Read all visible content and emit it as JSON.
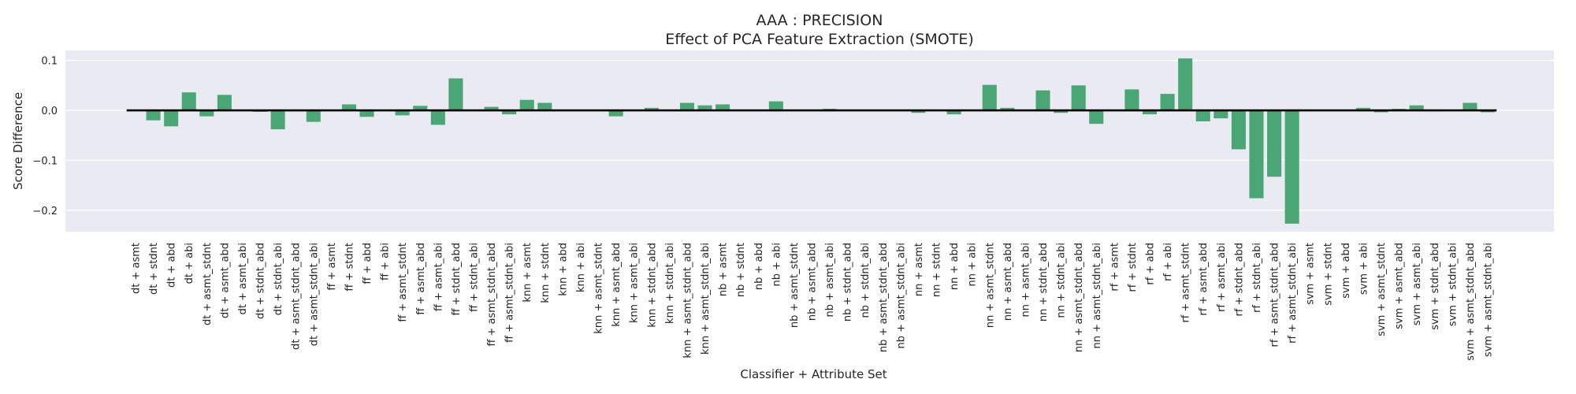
{
  "chart_data": {
    "type": "bar",
    "title": "AAA : PRECISION",
    "subtitle": "Effect of PCA Feature Extraction (SMOTE)",
    "xlabel": "Classifier + Attribute Set",
    "ylabel": "Score Difference",
    "ylim": [
      -0.243,
      0.12
    ],
    "yticks": [
      0.1,
      0.0,
      -0.1,
      -0.2
    ],
    "ytick_labels": [
      "0.1",
      "0.0",
      "−0.1",
      "−0.2"
    ],
    "grid": true,
    "bar_color": "#4aa775",
    "background_color": "#eaeaf2",
    "zero_line_color": "#000000",
    "categories": [
      "dt + asmt",
      "dt + stdnt",
      "dt + abd",
      "dt + abi",
      "dt + asmt_stdnt",
      "dt + asmt_abd",
      "dt + asmt_abi",
      "dt + stdnt_abd",
      "dt + stdnt_abi",
      "dt + asmt_stdnt_abd",
      "dt + asmt_stdnt_abi",
      "ff + asmt",
      "ff + stdnt",
      "ff + abd",
      "ff + abi",
      "ff + asmt_stdnt",
      "ff + asmt_abd",
      "ff + asmt_abi",
      "ff + stdnt_abd",
      "ff + stdnt_abi",
      "ff + asmt_stdnt_abd",
      "ff + asmt_stdnt_abi",
      "knn + asmt",
      "knn + stdnt",
      "knn + abd",
      "knn + abi",
      "knn + asmt_stdnt",
      "knn + asmt_abd",
      "knn + asmt_abi",
      "knn + stdnt_abd",
      "knn + stdnt_abi",
      "knn + asmt_stdnt_abd",
      "knn + asmt_stdnt_abi",
      "nb + asmt",
      "nb + stdnt",
      "nb + abd",
      "nb + abi",
      "nb + asmt_stdnt",
      "nb + asmt_abd",
      "nb + asmt_abi",
      "nb + stdnt_abd",
      "nb + stdnt_abi",
      "nb + asmt_stdnt_abd",
      "nb + asmt_stdnt_abi",
      "nn + asmt",
      "nn + stdnt",
      "nn + abd",
      "nn + abi",
      "nn + asmt_stdnt",
      "nn + asmt_abd",
      "nn + asmt_abi",
      "nn + stdnt_abd",
      "nn + stdnt_abi",
      "nn + asmt_stdnt_abd",
      "nn + asmt_stdnt_abi",
      "rf + asmt",
      "rf + stdnt",
      "rf + abd",
      "rf + abi",
      "rf + asmt_stdnt",
      "rf + asmt_abd",
      "rf + asmt_abi",
      "rf + stdnt_abd",
      "rf + stdnt_abi",
      "rf + asmt_stdnt_abd",
      "rf + asmt_stdnt_abi",
      "svm + asmt",
      "svm + stdnt",
      "svm + abd",
      "svm + abi",
      "svm + asmt_stdnt",
      "svm + asmt_abd",
      "svm + asmt_abi",
      "svm + stdnt_abd",
      "svm + stdnt_abi",
      "svm + asmt_stdnt_abd",
      "svm + asmt_stdnt_abi"
    ],
    "values": [
      0.0,
      -0.02,
      -0.032,
      0.036,
      -0.012,
      0.031,
      0.0,
      -0.003,
      -0.038,
      -0.002,
      -0.023,
      0.0,
      0.012,
      -0.013,
      0.0,
      -0.01,
      0.009,
      -0.029,
      0.064,
      0.0,
      0.007,
      -0.008,
      0.021,
      0.015,
      0.0,
      0.0,
      0.0,
      -0.012,
      0.0,
      0.005,
      0.0,
      0.015,
      0.01,
      0.012,
      0.0,
      0.0,
      0.018,
      0.0,
      0.0,
      0.003,
      0.0,
      0.0,
      0.0,
      0.0,
      -0.005,
      0.0,
      -0.008,
      0.0,
      0.051,
      0.005,
      0.0,
      0.04,
      -0.005,
      0.05,
      -0.027,
      0.0,
      0.042,
      -0.008,
      0.033,
      0.104,
      -0.022,
      -0.016,
      -0.078,
      -0.176,
      -0.133,
      -0.227,
      0.0,
      0.0,
      0.0,
      0.005,
      -0.004,
      0.003,
      0.01,
      -0.002,
      0.0,
      0.015,
      -0.004
    ]
  }
}
